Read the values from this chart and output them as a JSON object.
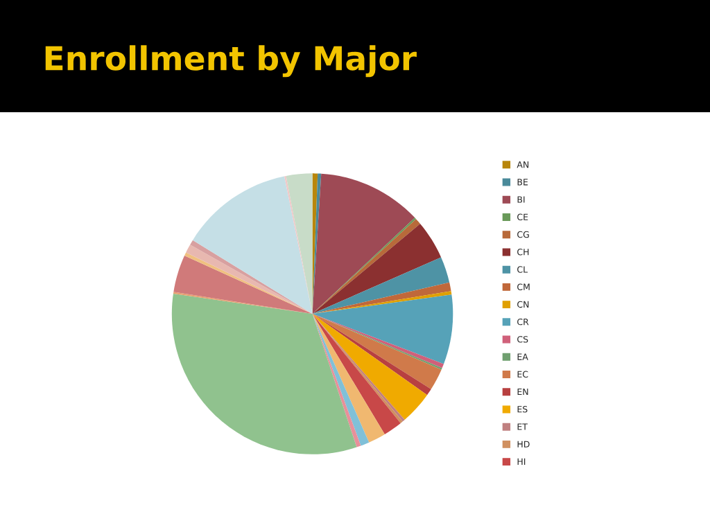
{
  "chart_data": {
    "type": "pie",
    "title": "Enrollment by Major",
    "legend": "right",
    "categories": [
      "AN",
      "BE",
      "BI",
      "CE",
      "CG",
      "CH",
      "CL",
      "CM",
      "CN",
      "CR",
      "CS",
      "EA",
      "EC",
      "EN",
      "ES",
      "ET",
      "HD",
      "HI",
      null,
      null,
      null,
      null,
      null,
      null,
      null,
      null,
      null,
      null,
      null,
      null
    ],
    "values": [
      0.6,
      0.4,
      12.0,
      0.2,
      0.7,
      4.5,
      3.0,
      1.0,
      0.4,
      8.0,
      0.5,
      0.2,
      2.5,
      0.8,
      3.8,
      0.3,
      0.3,
      2.2,
      2.0,
      1.0,
      0.5,
      32.4,
      0.2,
      4.3,
      0.4,
      1.0,
      0.6,
      13.0,
      0.2,
      3.0
    ],
    "colors": [
      "#b8860b",
      "#4a8a9a",
      "#9e4a55",
      "#6a9a5a",
      "#b86a3a",
      "#8b3030",
      "#4e93a5",
      "#c0683a",
      "#e0a000",
      "#56a2b8",
      "#d0607a",
      "#70a070",
      "#d07a4a",
      "#b84040",
      "#f0aa00",
      "#c08080",
      "#d09060",
      "#c84848",
      "#f0b870",
      "#80c0d8",
      "#e8909a",
      "#90c28e",
      "#e8a070",
      "#d07a7a",
      "#f0c080",
      "#e8b8b0",
      "#d8a0a0",
      "#c5dfe6",
      "#f0c8c8",
      "#c8dcc8"
    ]
  }
}
